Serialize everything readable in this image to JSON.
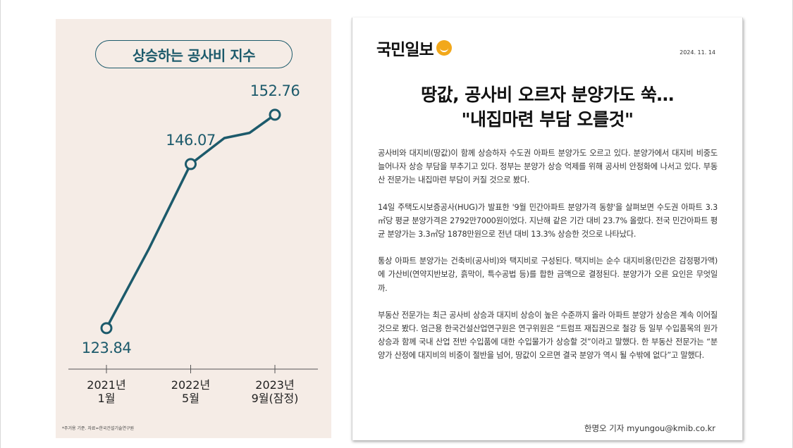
{
  "chart": {
    "title": "상승하는 공사비 지수",
    "note": "*주거용 기준. 자료=한국건설기술연구원",
    "colors": {
      "line": "#1c5a6b",
      "background": "#f5ece6"
    }
  },
  "chart_data": {
    "type": "line",
    "title": "상승하는 공사비 지수",
    "categories": [
      "2021년 1월",
      "2022년 5월",
      "2023년 9월(잠정)"
    ],
    "x_tick_labels": [
      {
        "line1": "2021년",
        "line2": "1월"
      },
      {
        "line1": "2022년",
        "line2": "5월"
      },
      {
        "line1": "2023년",
        "line2": "9월(잠정)"
      }
    ],
    "series": [
      {
        "values": [
          123.84,
          146.07,
          152.76
        ],
        "intermediate_path": [
          {
            "x": 0.0,
            "y": 123.84
          },
          {
            "x": 0.5,
            "y": 134.5
          },
          {
            "x": 1.0,
            "y": 146.07
          },
          {
            "x": 1.4,
            "y": 149.6
          },
          {
            "x": 1.7,
            "y": 150.3
          },
          {
            "x": 2.0,
            "y": 152.76
          }
        ]
      }
    ],
    "data_labels": [
      "123.84",
      "146.07",
      "152.76"
    ],
    "ylim": [
      118,
      160
    ],
    "grid": false,
    "legend": "none"
  },
  "newspaper": {
    "masthead": "국민일보",
    "date": "2024. 11. 14",
    "headline_line1": "땅값, 공사비 오르자 분양가도 쑥…",
    "headline_line2": "\"내집마련 부담 오를것\"",
    "paragraphs": [
      "공사비와 대지비(땅값)이 함께 상승하자 수도권 아파트 분양가도 오르고 있다. 분양가에서 대지비 비중도 늘어나자 상승 부담을 부추기고 있다. 정부는 분양가 상승 억제를 위해 공사비 안정화에 나서고 있다. 부동산 전문가는 내집마련 부담이 커질 것으로 봤다.",
      "14일 주택도시보증공사(HUG)가 발표한 '9월 민간아파트 분양가격 동향'을 살펴보면 수도권 아파트 3.3㎡당 평균 분양가격은 2792만7000원이었다. 지난해 같은 기간 대비 23.7% 올랐다. 전국 민간아파트 평균 분양가는 3.3㎡당 1878만원으로 전년 대비 13.3% 상승한 것으로 나타났다.",
      "통상 아파트 분양가는 건축비(공사비)와 택지비로 구성된다. 택지비는 순수 대지비용(민간은 감정평가액)에 가산비(연약지반보강, 흙막이, 특수공법 등)를 합한 금액으로 결정된다. 분양가가 오른 요인은 무엇일까.",
      "부동산 전문가는 최근 공사비 상승과 대지비 상승이 높은 수준까지 올라 아파트 분양가 상승은 계속 이어질 것으로 봤다. 엄근용 한국건설산업연구원은 연구위원은 “트럼프 재집권으로 철강 등 일부 수입품목의 원가 상승과 함께 국내 산업 전반 수입품에 대한 수입물가가 상승할 것”이라고 말했다. 한 부동산 전문가는 “분양가 산정에 대지비의 비중이 절반을 넘어, 땅값이 오르면 결국 분양가 역시 될 수밖에 없다”고 말했다."
    ],
    "byline": "한명오 기자 myungou@kmib.co.kr"
  }
}
